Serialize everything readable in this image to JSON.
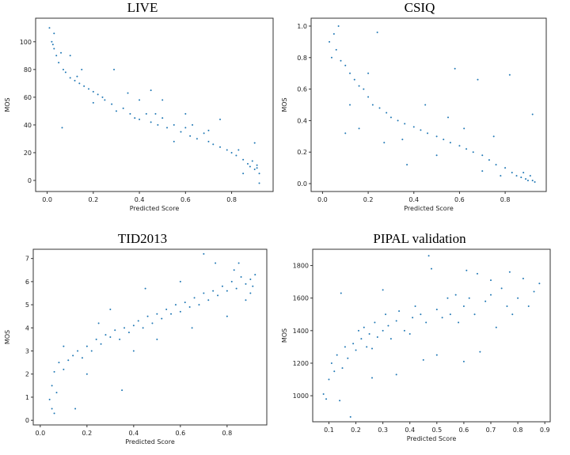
{
  "chart_data": [
    {
      "type": "scatter",
      "title": "LIVE",
      "xlabel": "Predicted Score",
      "ylabel": "MOS",
      "xlim": [
        -0.05,
        0.98
      ],
      "ylim": [
        -8,
        117
      ],
      "xticks": [
        "0.0",
        "0.2",
        "0.4",
        "0.6",
        "0.8"
      ],
      "xtick_values": [
        0,
        0.2,
        0.4,
        0.6,
        0.8
      ],
      "yticks": [
        "0",
        "20",
        "40",
        "60",
        "80",
        "100"
      ],
      "ytick_values": [
        0,
        20,
        40,
        60,
        80,
        100
      ],
      "color": "#1f77b4",
      "points": [
        [
          0.01,
          110
        ],
        [
          0.02,
          100
        ],
        [
          0.03,
          95
        ],
        [
          0.04,
          90
        ],
        [
          0.05,
          85
        ],
        [
          0.06,
          92
        ],
        [
          0.07,
          80
        ],
        [
          0.08,
          78
        ],
        [
          0.1,
          74
        ],
        [
          0.12,
          72
        ],
        [
          0.14,
          70
        ],
        [
          0.16,
          68
        ],
        [
          0.18,
          66
        ],
        [
          0.2,
          64
        ],
        [
          0.22,
          62
        ],
        [
          0.25,
          58
        ],
        [
          0.28,
          55
        ],
        [
          0.3,
          50
        ],
        [
          0.33,
          52
        ],
        [
          0.36,
          48
        ],
        [
          0.38,
          45
        ],
        [
          0.4,
          44
        ],
        [
          0.43,
          48
        ],
        [
          0.45,
          42
        ],
        [
          0.48,
          40
        ],
        [
          0.5,
          45
        ],
        [
          0.52,
          38
        ],
        [
          0.55,
          40
        ],
        [
          0.58,
          35
        ],
        [
          0.6,
          38
        ],
        [
          0.62,
          32
        ],
        [
          0.65,
          30
        ],
        [
          0.68,
          34
        ],
        [
          0.7,
          28
        ],
        [
          0.72,
          26
        ],
        [
          0.75,
          24
        ],
        [
          0.78,
          22
        ],
        [
          0.8,
          20
        ],
        [
          0.82,
          18
        ],
        [
          0.85,
          15
        ],
        [
          0.87,
          12
        ],
        [
          0.88,
          10
        ],
        [
          0.9,
          8
        ],
        [
          0.91,
          11
        ],
        [
          0.92,
          5
        ],
        [
          0.065,
          38
        ],
        [
          0.29,
          80
        ],
        [
          0.45,
          65
        ],
        [
          0.15,
          80
        ],
        [
          0.35,
          63
        ],
        [
          0.6,
          48
        ],
        [
          0.75,
          44
        ],
        [
          0.9,
          27
        ],
        [
          0.55,
          28
        ],
        [
          0.1,
          90
        ],
        [
          0.03,
          106
        ],
        [
          0.2,
          56
        ],
        [
          0.4,
          58
        ],
        [
          0.5,
          58
        ],
        [
          0.7,
          36
        ],
        [
          0.85,
          5
        ],
        [
          0.92,
          -2
        ],
        [
          0.89,
          14
        ],
        [
          0.91,
          9
        ],
        [
          0.025,
          98
        ],
        [
          0.13,
          75
        ],
        [
          0.24,
          60
        ],
        [
          0.47,
          48
        ],
        [
          0.63,
          40
        ],
        [
          0.83,
          22
        ]
      ]
    },
    {
      "type": "scatter",
      "title": "CSIQ",
      "xlabel": "Predicted Score",
      "ylabel": "MOS",
      "xlim": [
        -0.05,
        0.98
      ],
      "ylim": [
        -0.05,
        1.05
      ],
      "xticks": [
        "0.0",
        "0.2",
        "0.4",
        "0.6",
        "0.8"
      ],
      "xtick_values": [
        0,
        0.2,
        0.4,
        0.6,
        0.8
      ],
      "yticks": [
        "0.0",
        "0.2",
        "0.4",
        "0.6",
        "0.8",
        "1.0"
      ],
      "ytick_values": [
        0,
        0.2,
        0.4,
        0.6,
        0.8,
        1.0
      ],
      "color": "#1f77b4",
      "points": [
        [
          0.03,
          0.9
        ],
        [
          0.05,
          0.95
        ],
        [
          0.06,
          0.85
        ],
        [
          0.07,
          1.0
        ],
        [
          0.04,
          0.8
        ],
        [
          0.08,
          0.78
        ],
        [
          0.1,
          0.75
        ],
        [
          0.12,
          0.7
        ],
        [
          0.14,
          0.66
        ],
        [
          0.16,
          0.62
        ],
        [
          0.18,
          0.6
        ],
        [
          0.2,
          0.55
        ],
        [
          0.22,
          0.5
        ],
        [
          0.25,
          0.48
        ],
        [
          0.28,
          0.45
        ],
        [
          0.3,
          0.42
        ],
        [
          0.33,
          0.4
        ],
        [
          0.36,
          0.38
        ],
        [
          0.4,
          0.36
        ],
        [
          0.43,
          0.34
        ],
        [
          0.46,
          0.32
        ],
        [
          0.5,
          0.3
        ],
        [
          0.53,
          0.28
        ],
        [
          0.56,
          0.26
        ],
        [
          0.6,
          0.24
        ],
        [
          0.63,
          0.22
        ],
        [
          0.66,
          0.2
        ],
        [
          0.7,
          0.18
        ],
        [
          0.73,
          0.15
        ],
        [
          0.76,
          0.12
        ],
        [
          0.8,
          0.1
        ],
        [
          0.83,
          0.07
        ],
        [
          0.85,
          0.05
        ],
        [
          0.87,
          0.04
        ],
        [
          0.89,
          0.03
        ],
        [
          0.9,
          0.02
        ],
        [
          0.91,
          0.05
        ],
        [
          0.92,
          0.02
        ],
        [
          0.24,
          0.96
        ],
        [
          0.58,
          0.73
        ],
        [
          0.68,
          0.66
        ],
        [
          0.82,
          0.69
        ],
        [
          0.92,
          0.44
        ],
        [
          0.16,
          0.35
        ],
        [
          0.37,
          0.12
        ],
        [
          0.27,
          0.26
        ],
        [
          0.1,
          0.32
        ],
        [
          0.45,
          0.5
        ],
        [
          0.55,
          0.42
        ],
        [
          0.62,
          0.35
        ],
        [
          0.75,
          0.3
        ],
        [
          0.2,
          0.7
        ],
        [
          0.12,
          0.5
        ],
        [
          0.35,
          0.28
        ],
        [
          0.5,
          0.18
        ],
        [
          0.7,
          0.08
        ],
        [
          0.78,
          0.05
        ],
        [
          0.88,
          0.07
        ],
        [
          0.93,
          0.01
        ]
      ]
    },
    {
      "type": "scatter",
      "title": "TID2013",
      "xlabel": "Predicted Score",
      "ylabel": "MOS",
      "xlim": [
        -0.03,
        0.97
      ],
      "ylim": [
        -0.2,
        7.4
      ],
      "xticks": [
        "0.0",
        "0.2",
        "0.4",
        "0.6",
        "0.8"
      ],
      "xtick_values": [
        0,
        0.2,
        0.4,
        0.6,
        0.8
      ],
      "yticks": [
        "0",
        "1",
        "2",
        "3",
        "4",
        "5",
        "6",
        "7"
      ],
      "ytick_values": [
        0,
        1,
        2,
        3,
        4,
        5,
        6,
        7
      ],
      "color": "#1f77b4",
      "points": [
        [
          0.04,
          0.9
        ],
        [
          0.05,
          0.5
        ],
        [
          0.06,
          0.3
        ],
        [
          0.05,
          1.5
        ],
        [
          0.06,
          2.1
        ],
        [
          0.07,
          1.2
        ],
        [
          0.08,
          2.5
        ],
        [
          0.1,
          2.2
        ],
        [
          0.12,
          2.6
        ],
        [
          0.14,
          2.8
        ],
        [
          0.16,
          3.0
        ],
        [
          0.18,
          2.7
        ],
        [
          0.2,
          3.2
        ],
        [
          0.22,
          3.0
        ],
        [
          0.24,
          3.5
        ],
        [
          0.26,
          3.3
        ],
        [
          0.28,
          3.7
        ],
        [
          0.3,
          3.6
        ],
        [
          0.32,
          3.9
        ],
        [
          0.34,
          3.5
        ],
        [
          0.36,
          4.0
        ],
        [
          0.38,
          3.8
        ],
        [
          0.4,
          4.1
        ],
        [
          0.42,
          4.3
        ],
        [
          0.44,
          4.0
        ],
        [
          0.46,
          4.5
        ],
        [
          0.48,
          4.2
        ],
        [
          0.5,
          4.6
        ],
        [
          0.52,
          4.4
        ],
        [
          0.54,
          4.8
        ],
        [
          0.56,
          4.6
        ],
        [
          0.58,
          5.0
        ],
        [
          0.6,
          4.7
        ],
        [
          0.62,
          5.1
        ],
        [
          0.64,
          4.9
        ],
        [
          0.66,
          5.3
        ],
        [
          0.68,
          5.0
        ],
        [
          0.7,
          5.5
        ],
        [
          0.72,
          5.2
        ],
        [
          0.74,
          5.6
        ],
        [
          0.76,
          5.4
        ],
        [
          0.78,
          5.8
        ],
        [
          0.8,
          5.6
        ],
        [
          0.82,
          6.0
        ],
        [
          0.84,
          5.7
        ],
        [
          0.86,
          6.2
        ],
        [
          0.88,
          5.9
        ],
        [
          0.9,
          6.1
        ],
        [
          0.91,
          5.8
        ],
        [
          0.92,
          6.3
        ],
        [
          0.3,
          4.8
        ],
        [
          0.45,
          5.7
        ],
        [
          0.7,
          7.2
        ],
        [
          0.75,
          6.8
        ],
        [
          0.15,
          0.5
        ],
        [
          0.35,
          1.3
        ],
        [
          0.2,
          2.0
        ],
        [
          0.5,
          3.5
        ],
        [
          0.65,
          4.0
        ],
        [
          0.8,
          4.5
        ],
        [
          0.85,
          6.8
        ],
        [
          0.6,
          6.0
        ],
        [
          0.4,
          3.0
        ],
        [
          0.25,
          4.2
        ],
        [
          0.1,
          3.2
        ],
        [
          0.88,
          5.2
        ],
        [
          0.9,
          5.5
        ],
        [
          0.83,
          6.5
        ]
      ]
    },
    {
      "type": "scatter",
      "title": "PIPAL validation",
      "xlabel": "Predicted Score",
      "ylabel": "MOS",
      "xlim": [
        0.04,
        0.92
      ],
      "ylim": [
        840,
        1900
      ],
      "xticks": [
        "0.1",
        "0.2",
        "0.3",
        "0.4",
        "0.5",
        "0.6",
        "0.7",
        "0.8",
        "0.9"
      ],
      "xtick_values": [
        0.1,
        0.2,
        0.3,
        0.4,
        0.5,
        0.6,
        0.7,
        0.8,
        0.9
      ],
      "yticks": [
        "1000",
        "1200",
        "1400",
        "1600",
        "1800"
      ],
      "ytick_values": [
        1000,
        1200,
        1400,
        1600,
        1800
      ],
      "color": "#1f77b4",
      "points": [
        [
          0.08,
          1010
        ],
        [
          0.09,
          980
        ],
        [
          0.1,
          1100
        ],
        [
          0.11,
          1200
        ],
        [
          0.12,
          1150
        ],
        [
          0.13,
          1250
        ],
        [
          0.14,
          970
        ],
        [
          0.15,
          1170
        ],
        [
          0.16,
          1300
        ],
        [
          0.17,
          1230
        ],
        [
          0.18,
          870
        ],
        [
          0.19,
          1320
        ],
        [
          0.2,
          1280
        ],
        [
          0.21,
          1400
        ],
        [
          0.22,
          1350
        ],
        [
          0.23,
          1420
        ],
        [
          0.24,
          1300
        ],
        [
          0.25,
          1380
        ],
        [
          0.26,
          1290
        ],
        [
          0.27,
          1450
        ],
        [
          0.28,
          1360
        ],
        [
          0.3,
          1400
        ],
        [
          0.31,
          1500
        ],
        [
          0.32,
          1430
        ],
        [
          0.33,
          1350
        ],
        [
          0.35,
          1460
        ],
        [
          0.36,
          1520
        ],
        [
          0.38,
          1400
        ],
        [
          0.4,
          1380
        ],
        [
          0.41,
          1480
        ],
        [
          0.42,
          1550
        ],
        [
          0.44,
          1500
        ],
        [
          0.46,
          1450
        ],
        [
          0.47,
          1860
        ],
        [
          0.48,
          1780
        ],
        [
          0.5,
          1530
        ],
        [
          0.52,
          1480
        ],
        [
          0.54,
          1600
        ],
        [
          0.55,
          1500
        ],
        [
          0.57,
          1620
        ],
        [
          0.58,
          1450
        ],
        [
          0.6,
          1550
        ],
        [
          0.61,
          1770
        ],
        [
          0.62,
          1600
        ],
        [
          0.64,
          1500
        ],
        [
          0.65,
          1750
        ],
        [
          0.66,
          1270
        ],
        [
          0.68,
          1580
        ],
        [
          0.7,
          1620
        ],
        [
          0.72,
          1420
        ],
        [
          0.74,
          1660
        ],
        [
          0.76,
          1550
        ],
        [
          0.77,
          1760
        ],
        [
          0.78,
          1500
        ],
        [
          0.8,
          1600
        ],
        [
          0.82,
          1720
        ],
        [
          0.84,
          1550
        ],
        [
          0.86,
          1640
        ],
        [
          0.88,
          1690
        ],
        [
          0.145,
          1630
        ],
        [
          0.35,
          1130
        ],
        [
          0.6,
          1210
        ],
        [
          0.26,
          1110
        ],
        [
          0.45,
          1220
        ],
        [
          0.5,
          1250
        ],
        [
          0.7,
          1710
        ],
        [
          0.3,
          1650
        ]
      ]
    }
  ]
}
